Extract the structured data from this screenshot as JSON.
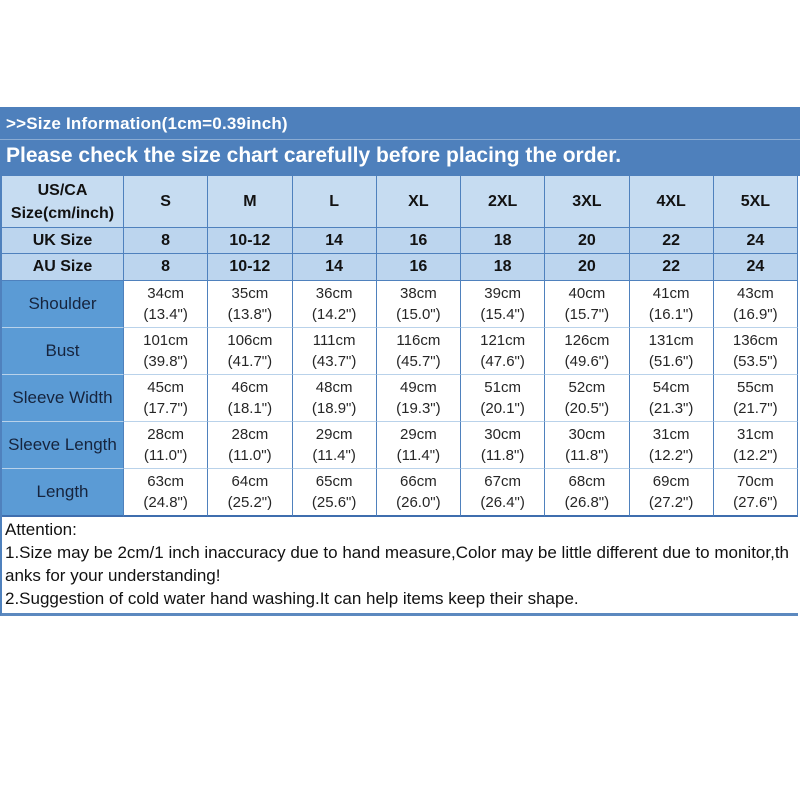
{
  "banner": {
    "title": ">>Size Information(1cm=0.39inch)",
    "subtitle": "Please check the size chart carefully before placing the order.",
    "background": "#4e80bc",
    "text_color": "#ffffff"
  },
  "table": {
    "header": {
      "col0_line1": "US/CA",
      "col0_line2": "Size(cm/inch)",
      "sizes": [
        "S",
        "M",
        "L",
        "XL",
        "2XL",
        "3XL",
        "4XL",
        "5XL"
      ]
    },
    "uk_row": {
      "label": "UK Size",
      "values": [
        "8",
        "10-12",
        "14",
        "16",
        "18",
        "20",
        "22",
        "24"
      ]
    },
    "au_row": {
      "label": "AU Size",
      "values": [
        "8",
        "10-12",
        "14",
        "16",
        "18",
        "20",
        "22",
        "24"
      ]
    },
    "measurements": [
      {
        "label": "Shoulder",
        "cm": [
          "34cm",
          "35cm",
          "36cm",
          "38cm",
          "39cm",
          "40cm",
          "41cm",
          "43cm"
        ],
        "inch": [
          "(13.4\")",
          "(13.8\")",
          "(14.2\")",
          "(15.0\")",
          "(15.4\")",
          "(15.7\")",
          "(16.1\")",
          "(16.9\")"
        ]
      },
      {
        "label": "Bust",
        "cm": [
          "101cm",
          "106cm",
          "111cm",
          "116cm",
          "121cm",
          "126cm",
          "131cm",
          "136cm"
        ],
        "inch": [
          "(39.8\")",
          "(41.7\")",
          "(43.7\")",
          "(45.7\")",
          "(47.6\")",
          "(49.6\")",
          "(51.6\")",
          "(53.5\")"
        ]
      },
      {
        "label": "Sleeve Width",
        "cm": [
          "45cm",
          "46cm",
          "48cm",
          "49cm",
          "51cm",
          "52cm",
          "54cm",
          "55cm"
        ],
        "inch": [
          "(17.7\")",
          "(18.1\")",
          "(18.9\")",
          "(19.3\")",
          "(20.1\")",
          "(20.5\")",
          "(21.3\")",
          "(21.7\")"
        ]
      },
      {
        "label": "Sleeve Length",
        "cm": [
          "28cm",
          "28cm",
          "29cm",
          "29cm",
          "30cm",
          "30cm",
          "31cm",
          "31cm"
        ],
        "inch": [
          "(11.0\")",
          "(11.0\")",
          "(11.4\")",
          "(11.4\")",
          "(11.8\")",
          "(11.8\")",
          "(12.2\")",
          "(12.2\")"
        ]
      },
      {
        "label": "Length",
        "cm": [
          "63cm",
          "64cm",
          "65cm",
          "66cm",
          "67cm",
          "68cm",
          "69cm",
          "70cm"
        ],
        "inch": [
          "(24.8\")",
          "(25.2\")",
          "(25.6\")",
          "(26.0\")",
          "(26.4\")",
          "(26.8\")",
          "(27.2\")",
          "(27.6\")"
        ]
      }
    ]
  },
  "attention": {
    "heading": "Attention:",
    "note1": "1.Size may be 2cm/1 inch inaccuracy due to hand measure,Color may be little different due to monitor,thanks for your understanding!",
    "note2": "2.Suggestion of cold water hand washing.It can help items keep their shape."
  },
  "colors": {
    "banner_blue": "#4e80bc",
    "header_cell_blue": "#c6dcf1",
    "uk_au_row_blue": "#bcd5ee",
    "label_cell_blue": "#5b9bd5",
    "grid_line_blue": "#4f81bd",
    "grid_line_light": "#b9d2ea",
    "data_cell_white": "#ffffff"
  }
}
